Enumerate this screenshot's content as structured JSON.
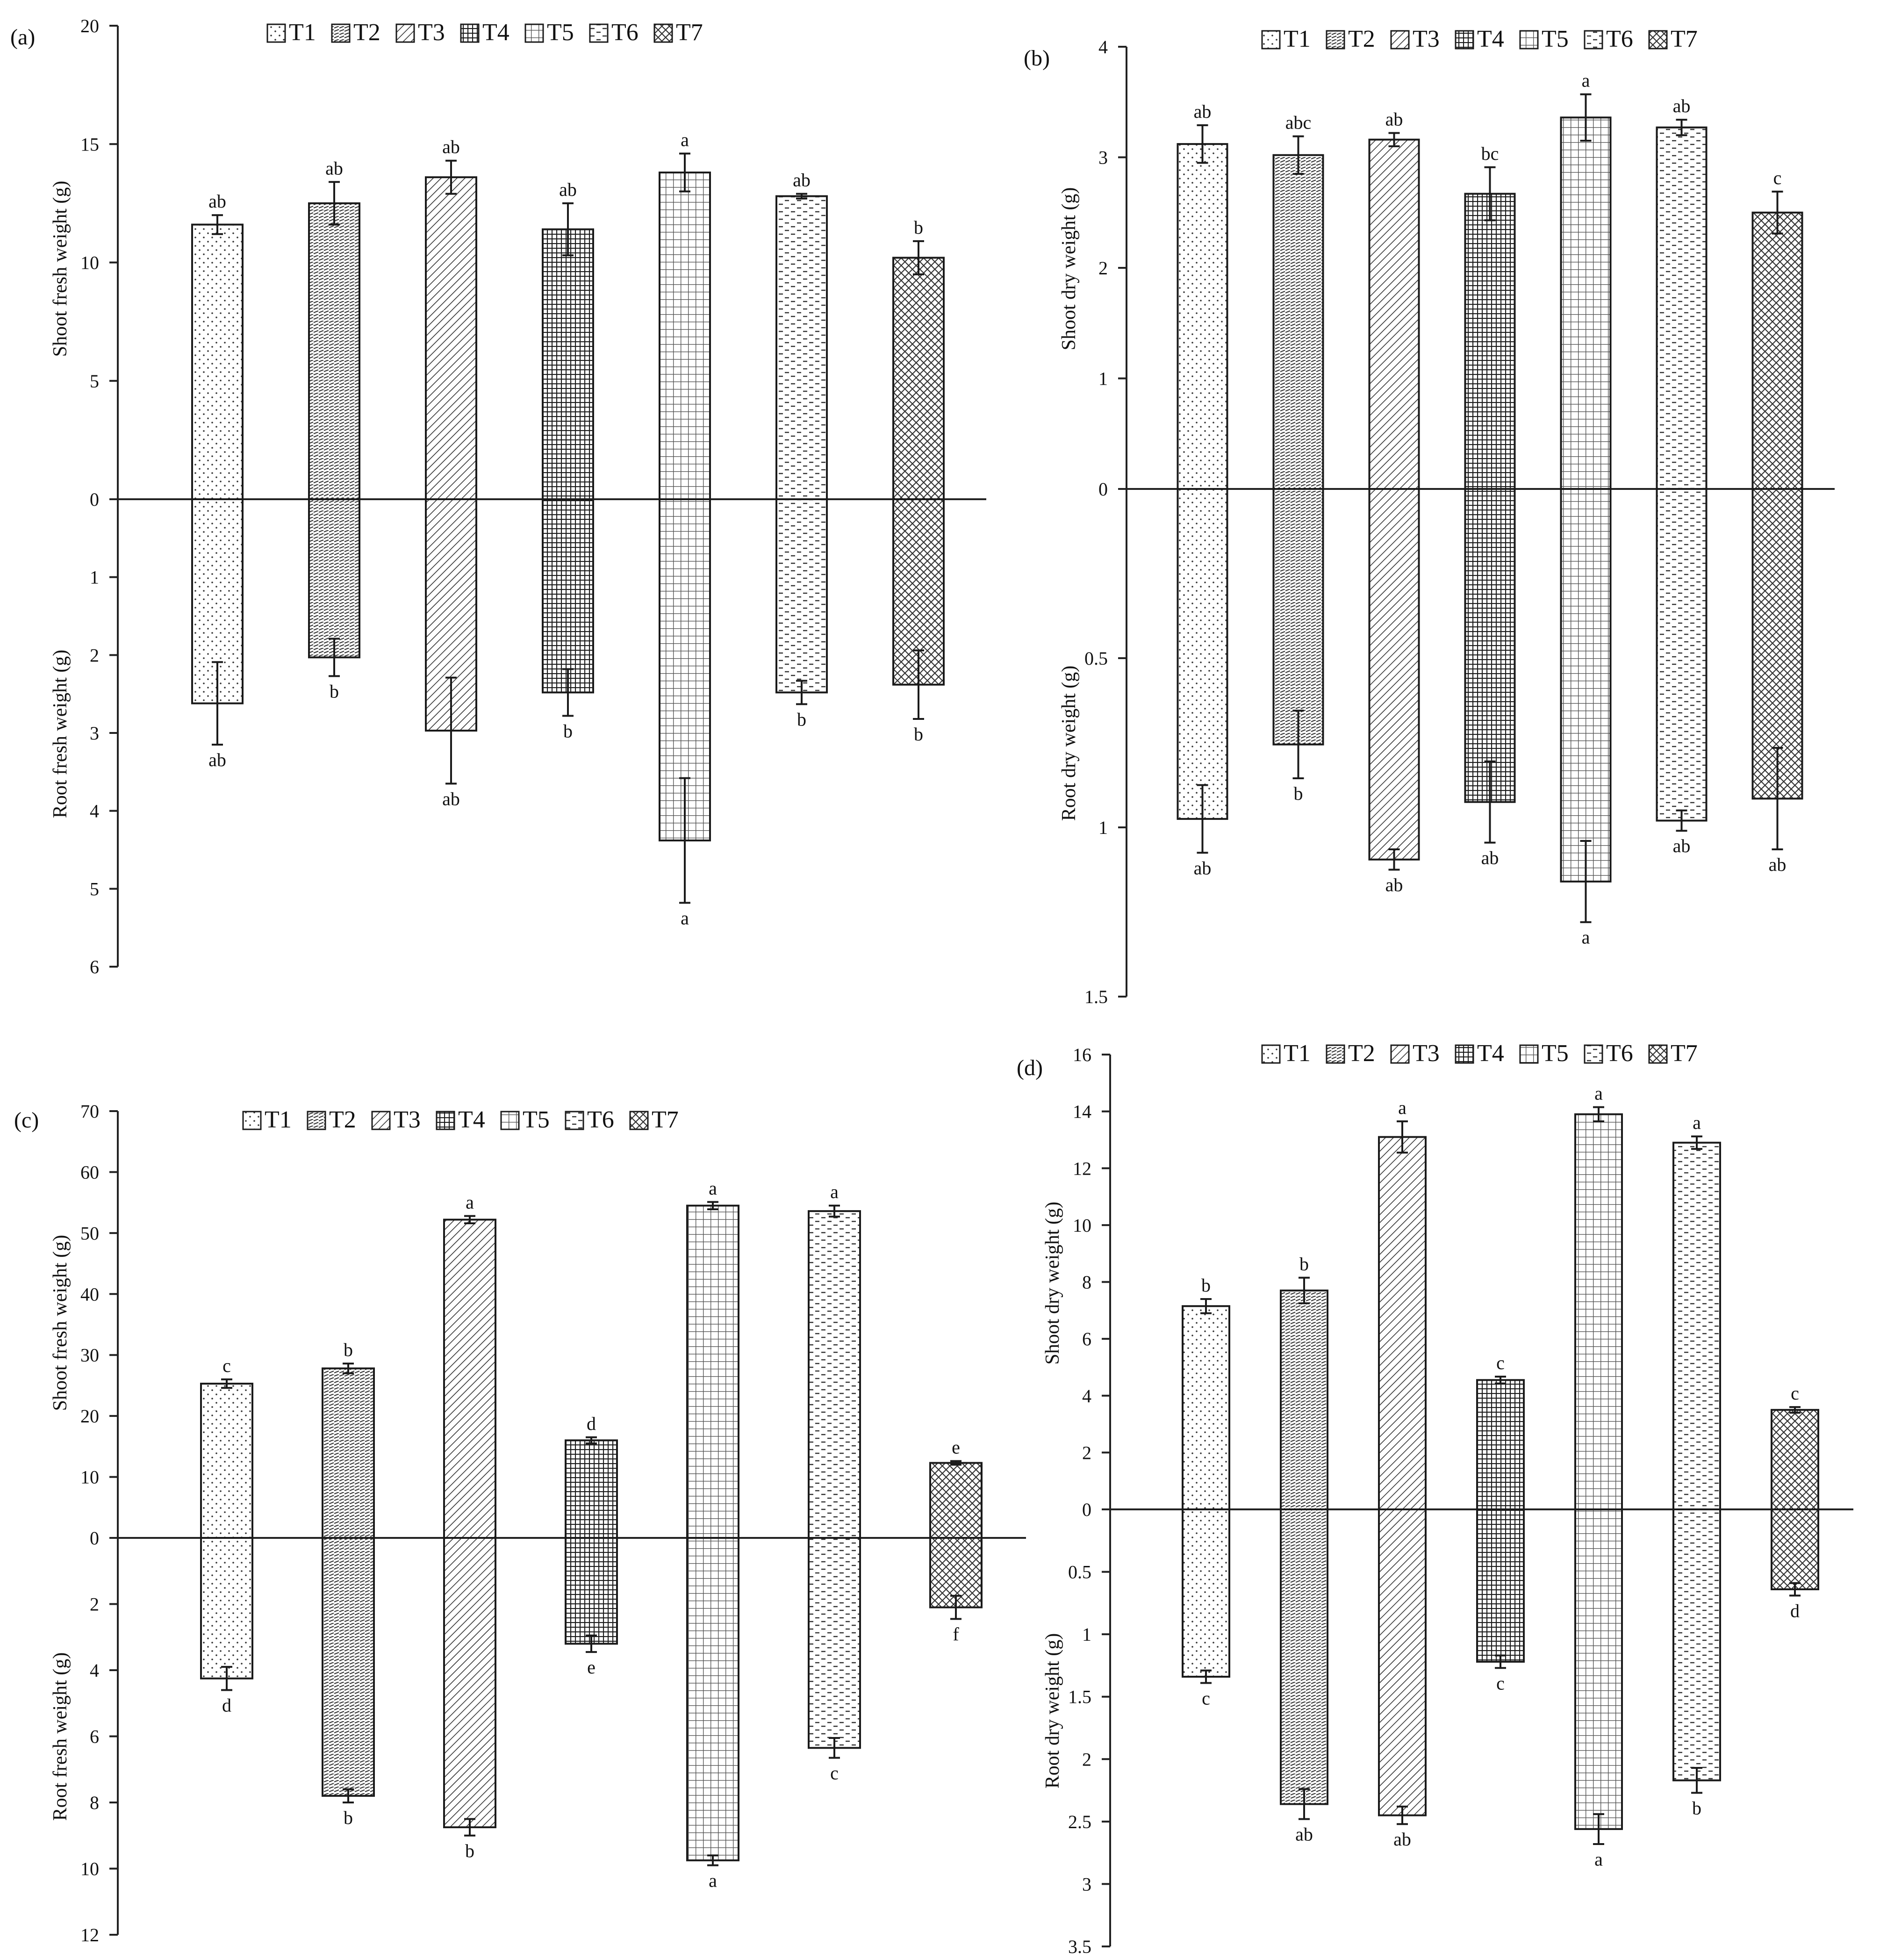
{
  "colors": {
    "ink": "#1a1a1a",
    "background": "#ffffff"
  },
  "chart_data": [
    {
      "type": "bar",
      "panel_label": "(a)",
      "categories": [
        "T1",
        "T2",
        "T3",
        "T4",
        "T5",
        "T6",
        "T7"
      ],
      "legend": [
        "T1",
        "T2",
        "T3",
        "T4",
        "T5",
        "T6",
        "T7"
      ],
      "legend_position": "top",
      "top": {
        "ylabel": "Shoot fresh weight (g)",
        "ylim": [
          0,
          20
        ],
        "ticks": [
          0,
          5,
          10,
          15,
          20
        ],
        "values": [
          11.6,
          12.5,
          13.6,
          11.4,
          13.8,
          12.8,
          10.2
        ],
        "errors": [
          0.4,
          0.9,
          0.7,
          1.1,
          0.8,
          0.1,
          0.7
        ],
        "letters": [
          "ab",
          "ab",
          "ab",
          "ab",
          "a",
          "ab",
          "b"
        ]
      },
      "bottom": {
        "ylabel": "Root fresh weight (g)",
        "ylim": [
          0,
          6
        ],
        "ticks": [
          1,
          2,
          3,
          4,
          5,
          6
        ],
        "values": [
          2.62,
          2.03,
          2.97,
          2.48,
          4.38,
          2.48,
          2.38
        ],
        "errors": [
          0.53,
          0.24,
          0.68,
          0.3,
          0.8,
          0.15,
          0.44
        ],
        "letters": [
          "ab",
          "b",
          "ab",
          "b",
          "a",
          "b",
          "b"
        ]
      },
      "zero_label": "0"
    },
    {
      "type": "bar",
      "panel_label": "(b)",
      "categories": [
        "T1",
        "T2",
        "T3",
        "T4",
        "T5",
        "T6",
        "T7"
      ],
      "legend": [
        "T1",
        "T2",
        "T3",
        "T4",
        "T5",
        "T6",
        "T7"
      ],
      "legend_position": "top",
      "top": {
        "ylabel": "Shoot dry weight (g)",
        "ylim": [
          0,
          4
        ],
        "ticks": [
          0,
          1,
          2,
          3,
          4
        ],
        "values": [
          3.12,
          3.02,
          3.16,
          2.67,
          3.36,
          3.27,
          2.5
        ],
        "errors": [
          0.17,
          0.17,
          0.06,
          0.24,
          0.21,
          0.07,
          0.19
        ],
        "letters": [
          "ab",
          "abc",
          "ab",
          "bc",
          "a",
          "ab",
          "c"
        ]
      },
      "bottom": {
        "ylabel": "Root dry weight (g)",
        "ylim": [
          0,
          1.5
        ],
        "ticks": [
          0.5,
          1,
          1.5
        ],
        "values": [
          0.975,
          0.755,
          1.095,
          0.925,
          1.16,
          0.98,
          0.915
        ],
        "errors": [
          0.1,
          0.1,
          0.03,
          0.12,
          0.12,
          0.03,
          0.15
        ],
        "letters": [
          "ab",
          "b",
          "ab",
          "ab",
          "a",
          "ab",
          "ab"
        ]
      },
      "zero_label": "0"
    },
    {
      "type": "bar",
      "panel_label": "(c)",
      "categories": [
        "T1",
        "T2",
        "T3",
        "T4",
        "T5",
        "T6",
        "T7"
      ],
      "legend": [
        "T1",
        "T2",
        "T3",
        "T4",
        "T5",
        "T6",
        "T7"
      ],
      "legend_position": "top",
      "top": {
        "ylabel": "Shoot fresh weight (g)",
        "ylim": [
          0,
          70
        ],
        "ticks": [
          0,
          10,
          20,
          30,
          40,
          50,
          60,
          70
        ],
        "values": [
          25.3,
          27.8,
          52.2,
          16,
          54.5,
          53.6,
          12.3
        ],
        "errors": [
          0.7,
          0.8,
          0.6,
          0.5,
          0.6,
          0.9,
          0.3
        ],
        "letters": [
          "c",
          "b",
          "a",
          "d",
          "a",
          "a",
          "e"
        ]
      },
      "bottom": {
        "ylabel": "Root fresh weight (g)",
        "ylim": [
          0,
          12
        ],
        "ticks": [
          2,
          4,
          6,
          8,
          10,
          12
        ],
        "values": [
          4.25,
          7.8,
          8.75,
          3.2,
          9.75,
          6.35,
          2.1
        ],
        "errors": [
          0.35,
          0.2,
          0.25,
          0.25,
          0.15,
          0.3,
          0.35
        ],
        "letters": [
          "d",
          "b",
          "b",
          "e",
          "a",
          "c",
          "f"
        ]
      },
      "zero_label": "0"
    },
    {
      "type": "bar",
      "panel_label": "(d)",
      "categories": [
        "T1",
        "T2",
        "T3",
        "T4",
        "T5",
        "T6",
        "T7"
      ],
      "legend": [
        "T1",
        "T2",
        "T3",
        "T4",
        "T5",
        "T6",
        "T7"
      ],
      "legend_position": "top",
      "top": {
        "ylabel": "Shoot dry weight (g)",
        "ylim": [
          0,
          16
        ],
        "ticks": [
          0,
          2,
          4,
          6,
          8,
          10,
          12,
          14,
          16
        ],
        "values": [
          7.15,
          7.7,
          13.1,
          4.55,
          13.9,
          12.9,
          3.5
        ],
        "errors": [
          0.25,
          0.45,
          0.55,
          0.12,
          0.25,
          0.22,
          0.1
        ],
        "letters": [
          "b",
          "b",
          "a",
          "c",
          "a",
          "a",
          "c"
        ]
      },
      "bottom": {
        "ylabel": "Root dry weight (g)",
        "ylim": [
          0,
          3.5
        ],
        "ticks": [
          0.5,
          1,
          1.5,
          2,
          2.5,
          3,
          3.5
        ],
        "values": [
          1.34,
          2.36,
          2.45,
          1.22,
          2.56,
          2.17,
          0.64
        ],
        "errors": [
          0.05,
          0.12,
          0.07,
          0.05,
          0.12,
          0.1,
          0.05
        ],
        "letters": [
          "c",
          "ab",
          "ab",
          "c",
          "a",
          "b",
          "d"
        ]
      },
      "zero_label": "0"
    }
  ]
}
